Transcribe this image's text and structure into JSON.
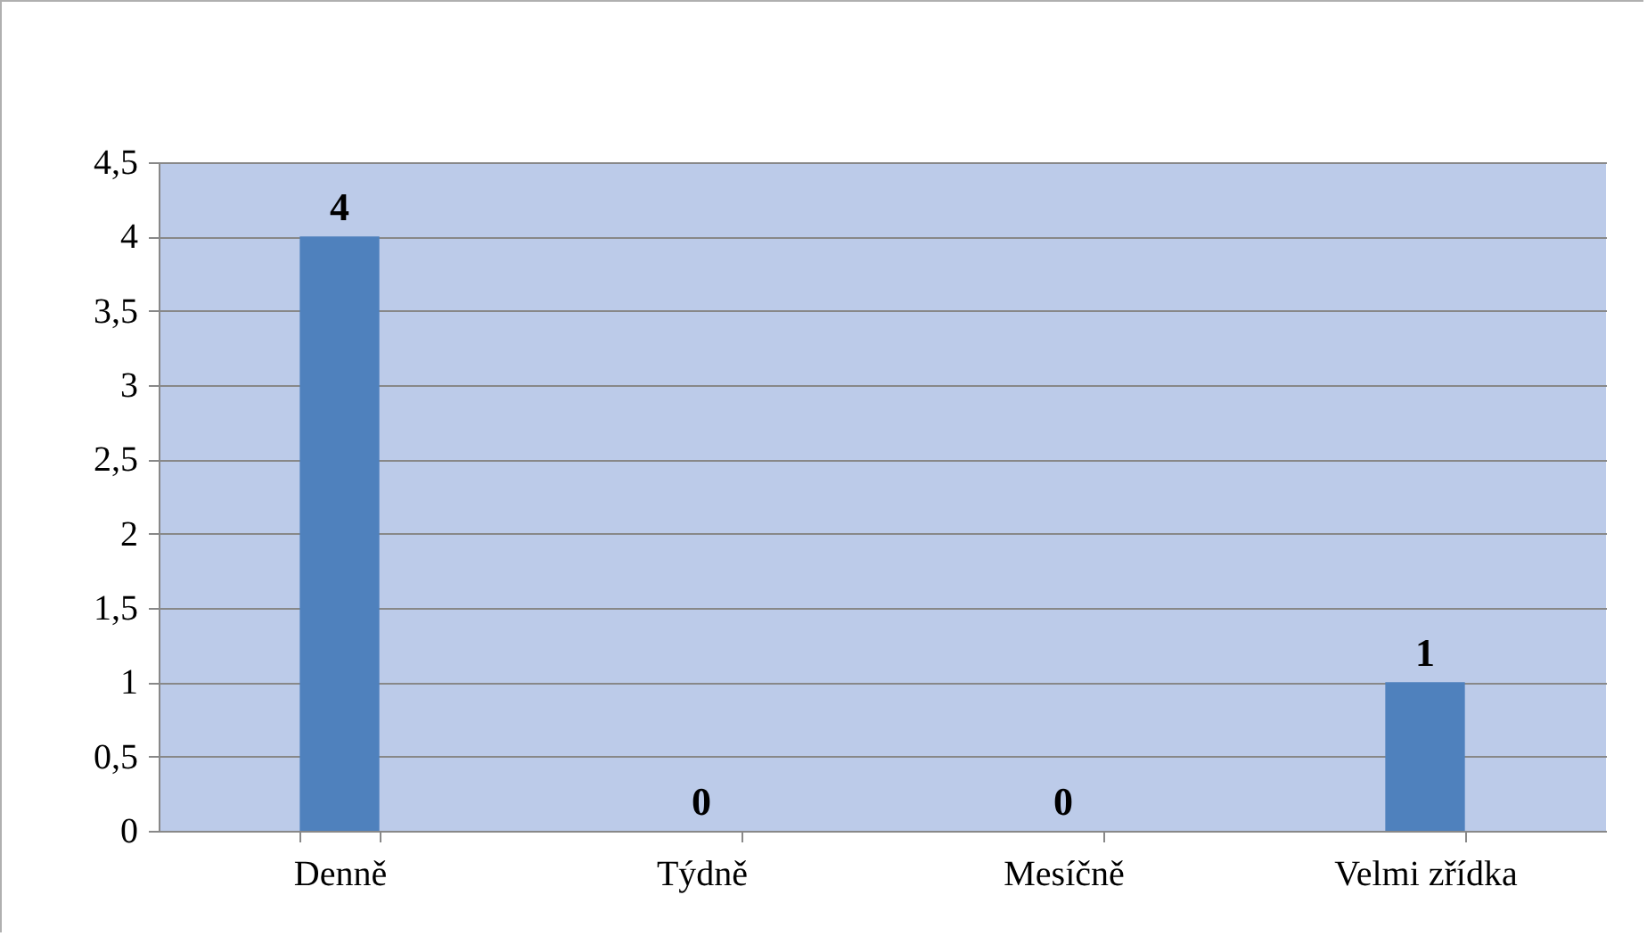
{
  "chart_data": {
    "type": "bar",
    "categories": [
      "Denně",
      "Týdně",
      "Mesíčně",
      "Velmi zřídka"
    ],
    "values": [
      4,
      0,
      0,
      1
    ],
    "color": "#4f81bd",
    "ylim": [
      0,
      4.5
    ],
    "yticks": [
      0,
      {
        "value": 0.5,
        "label": "0,5"
      },
      1,
      {
        "value": 1.5,
        "label": "1,5"
      },
      2,
      {
        "value": 2.5,
        "label": "2,5"
      },
      3,
      {
        "value": 3.5,
        "label": "3,5"
      },
      4,
      {
        "value": 4.5,
        "label": "4,5"
      }
    ],
    "grid": "y",
    "data_labels": true
  }
}
